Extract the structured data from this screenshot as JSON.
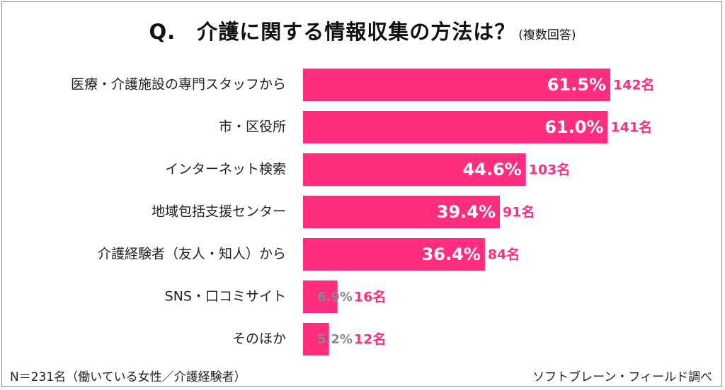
{
  "title": "Q.　介護に関する情報収集の方法は？",
  "subtitle": "(複数回答)",
  "footer_note": "N＝231名（働いている女性／介護経験者）",
  "source": "ソフトブレーン・フィールド調べ",
  "colors": {
    "bar": "#ff2d7f",
    "count_label": "#ff2d7f",
    "pct_inside": "#ffffff",
    "pct_outside": "#888888",
    "text": "#222222"
  },
  "chart_data": {
    "type": "bar",
    "orientation": "horizontal",
    "categories": [
      "医療・介護施設の専門スタッフから",
      "市・区役所",
      "インターネット検索",
      "地域包括支援センター",
      "介護経験者（友人・知人）から",
      "SNS・口コミサイト",
      "そのほか"
    ],
    "values": [
      61.5,
      61.0,
      44.6,
      39.4,
      36.4,
      6.9,
      5.2
    ],
    "value_labels": [
      "61.5%",
      "61.0%",
      "44.6%",
      "39.4%",
      "36.4%",
      "6.9%",
      "5.2%"
    ],
    "counts": [
      "142名",
      "141名",
      "103名",
      "91名",
      "84名",
      "16名",
      "12名"
    ],
    "xlim": [
      0,
      70
    ],
    "grid": false,
    "legend": "none"
  }
}
